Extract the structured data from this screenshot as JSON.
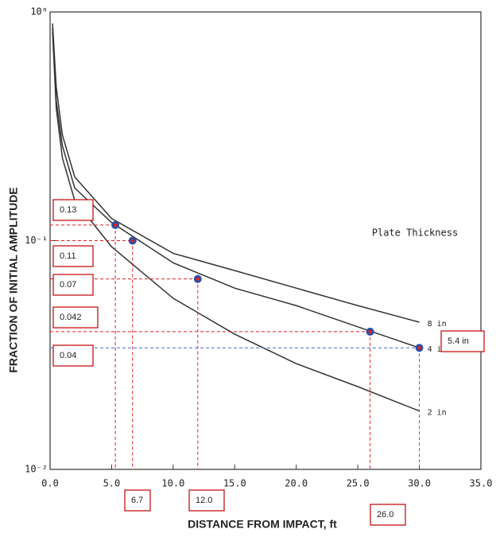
{
  "chart_data": {
    "type": "line",
    "xlabel": "DISTANCE FROM IMPACT, ft",
    "ylabel": "FRACTION OF INITIAL AMPLITUDE",
    "legend_title": "Plate Thickness",
    "log_y": true,
    "x": [
      0.2,
      0.5,
      1,
      2,
      5,
      10,
      15,
      20,
      25,
      30
    ],
    "series": [
      {
        "name": "8 in",
        "color": "#333333",
        "values": [
          0.89,
          0.47,
          0.29,
          0.19,
          0.125,
          0.088,
          0.074,
          0.062,
          0.052,
          0.044
        ]
      },
      {
        "name": "4 in",
        "color": "#333333",
        "values": [
          0.85,
          0.41,
          0.26,
          0.17,
          0.12,
          0.08,
          0.062,
          0.052,
          0.042,
          0.034
        ]
      },
      {
        "name": "2 in",
        "color": "#333333",
        "values": [
          0.82,
          0.38,
          0.23,
          0.15,
          0.094,
          0.056,
          0.039,
          0.029,
          0.023,
          0.018
        ]
      }
    ],
    "points": {
      "x": [
        5.3,
        6.7,
        12.0,
        26.0,
        30.0
      ],
      "values": [
        0.117,
        0.1,
        0.068,
        0.04,
        0.034
      ],
      "color": "#2b4fa8"
    },
    "xlim": [
      0,
      35
    ],
    "ylim": [
      0.01,
      1
    ],
    "xticks": [
      {
        "value": 0,
        "label": "0.0"
      },
      {
        "value": 5,
        "label": "5.0"
      },
      {
        "value": 10,
        "label": "10.0"
      },
      {
        "value": 15,
        "label": "15.0"
      },
      {
        "value": 20,
        "label": "20.0"
      },
      {
        "value": 25,
        "label": "25.0"
      },
      {
        "value": 30,
        "label": "30.0"
      },
      {
        "value": 35,
        "label": "35.0"
      }
    ],
    "yticks": [
      {
        "value": 1,
        "label": "10⁰"
      },
      {
        "value": 0.1,
        "label": "10⁻¹"
      },
      {
        "value": 0.01,
        "label": "10⁻²"
      }
    ],
    "annotations": [
      "0.13",
      "0.11",
      "0.07",
      "0.042",
      "0.04",
      "6.7",
      "12.0",
      "26.0",
      "5.4 in"
    ]
  }
}
